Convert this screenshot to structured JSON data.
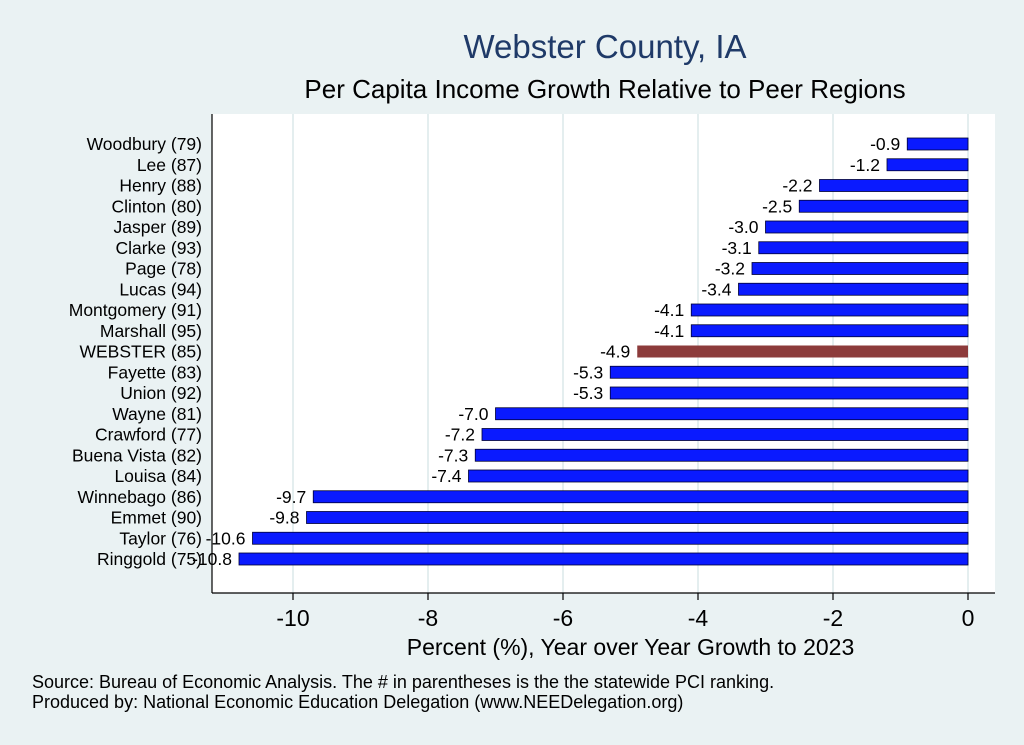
{
  "title": "Webster County, IA",
  "subtitle": "Per Capita Income Growth Relative to Peer Regions",
  "footer": {
    "source": "Source: Bureau of Economic Analysis. The # in parentheses is the the statewide PCI ranking.",
    "produced": "Produced by: National Economic Education Delegation (www.NEEDelegation.org)"
  },
  "colors": {
    "background": "#eaf2f3",
    "plot_background": "#ffffff",
    "bar": "#0a1aff",
    "highlight_bar": "#8c3b3b",
    "grid": "#e4eeef",
    "title": "#1f3a68"
  },
  "chart_data": {
    "type": "bar",
    "orientation": "horizontal",
    "categories": [
      "Woodbury (79)",
      "Lee (87)",
      "Henry (88)",
      "Clinton (80)",
      "Jasper (89)",
      "Clarke (93)",
      "Page (78)",
      "Lucas (94)",
      "Montgomery (91)",
      "Marshall (95)",
      "WEBSTER (85)",
      "Fayette (83)",
      "Union (92)",
      "Wayne (81)",
      "Crawford (77)",
      "Buena Vista (82)",
      "Louisa (84)",
      "Winnebago (86)",
      "Emmet (90)",
      "Taylor (76)",
      "Ringgold (75)"
    ],
    "values": [
      -0.9,
      -1.2,
      -2.2,
      -2.5,
      -3.0,
      -3.1,
      -3.2,
      -3.4,
      -4.1,
      -4.1,
      -4.9,
      -5.3,
      -5.3,
      -7.0,
      -7.2,
      -7.3,
      -7.4,
      -9.7,
      -9.8,
      -10.6,
      -10.8
    ],
    "value_labels": [
      "-0.9",
      "-1.2",
      "-2.2",
      "-2.5",
      "-3.0",
      "-3.1",
      "-3.2",
      "-3.4",
      "-4.1",
      "-4.1",
      "-4.9",
      "-5.3",
      "-5.3",
      "-7.0",
      "-7.2",
      "-7.3",
      "-7.4",
      "-9.7",
      "-9.8",
      "-10.6",
      "-10.8"
    ],
    "highlight": "WEBSTER (85)",
    "xlabel": "Percent (%), Year over Year Growth to 2023",
    "ylabel": "",
    "xlim": [
      -11.2,
      0.4
    ],
    "xticks": [
      -10,
      -8,
      -6,
      -4,
      -2,
      0
    ],
    "xtick_labels": [
      "-10",
      "-8",
      "-6",
      "-4",
      "-2",
      "0"
    ],
    "grid": true,
    "legend": "none"
  }
}
